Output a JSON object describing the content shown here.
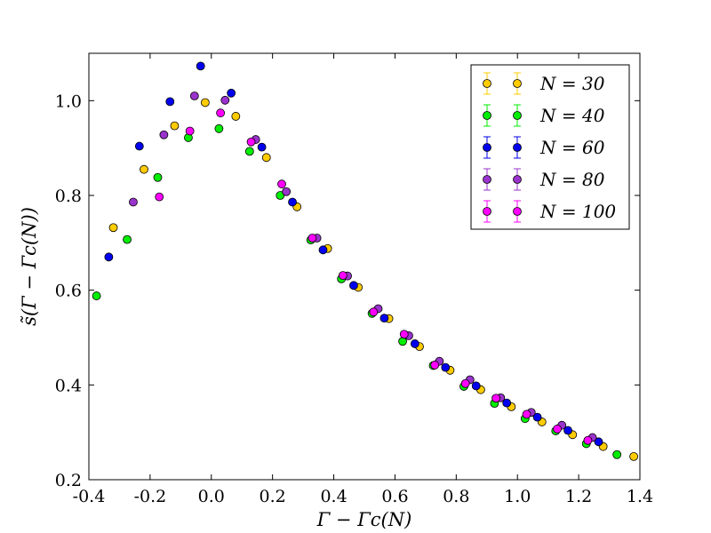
{
  "chart_data": {
    "type": "scatter",
    "title": "",
    "xlabel": "Γ − Γc(N)",
    "ylabel": "s̃(Γ − Γc(N))",
    "xlim": [
      -0.4,
      1.4
    ],
    "ylim": [
      0.2,
      1.1
    ],
    "xticks": [
      "-0.4",
      "-0.2",
      "0.0",
      "0.2",
      "0.4",
      "0.6",
      "0.8",
      "1.0",
      "1.2",
      "1.4"
    ],
    "yticks": [
      "0.2",
      "0.4",
      "0.6",
      "0.8",
      "1.0"
    ],
    "grid": false,
    "legend_position": "top-right",
    "series": [
      {
        "name": "N = 30",
        "color": "#ffcc00",
        "x": [
          -0.32,
          -0.22,
          -0.12,
          -0.02,
          0.08,
          0.18,
          0.28,
          0.38,
          0.48,
          0.58,
          0.68,
          0.78,
          0.88,
          0.98,
          1.08,
          1.18,
          1.28,
          1.38
        ],
        "y": [
          0.732,
          0.855,
          0.947,
          0.996,
          0.967,
          0.88,
          0.776,
          0.688,
          0.606,
          0.54,
          0.481,
          0.431,
          0.39,
          0.354,
          0.322,
          0.295,
          0.27,
          0.249
        ]
      },
      {
        "name": "N = 40",
        "color": "#00ee00",
        "x": [
          -0.375,
          -0.275,
          -0.175,
          -0.075,
          0.025,
          0.125,
          0.225,
          0.325,
          0.425,
          0.525,
          0.625,
          0.725,
          0.825,
          0.925,
          1.025,
          1.125,
          1.225,
          1.325
        ],
        "y": [
          0.588,
          0.707,
          0.838,
          0.922,
          0.941,
          0.893,
          0.8,
          0.706,
          0.624,
          0.551,
          0.492,
          0.441,
          0.397,
          0.361,
          0.329,
          0.303,
          0.276,
          0.253
        ]
      },
      {
        "name": "N = 60",
        "color": "#0000ee",
        "x": [
          -0.335,
          -0.235,
          -0.135,
          -0.035,
          0.065,
          0.165,
          0.265,
          0.365,
          0.465,
          0.565,
          0.665,
          0.765,
          0.865,
          0.965,
          1.065,
          1.165,
          1.265
        ],
        "y": [
          0.67,
          0.904,
          0.998,
          1.073,
          1.016,
          0.902,
          0.786,
          0.685,
          0.61,
          0.541,
          0.487,
          0.437,
          0.398,
          0.362,
          0.332,
          0.304,
          0.28
        ]
      },
      {
        "name": "N = 80",
        "color": "#9933cc",
        "x": [
          -0.255,
          -0.155,
          -0.055,
          0.045,
          0.145,
          0.245,
          0.345,
          0.445,
          0.545,
          0.645,
          0.745,
          0.845,
          0.945,
          1.045,
          1.145,
          1.245
        ],
        "y": [
          0.786,
          0.928,
          1.01,
          1.001,
          0.918,
          0.808,
          0.71,
          0.63,
          0.561,
          0.504,
          0.45,
          0.411,
          0.373,
          0.342,
          0.315,
          0.289
        ]
      },
      {
        "name": "N = 100",
        "color": "#ff00ff",
        "x": [
          -0.17,
          -0.07,
          0.03,
          0.13,
          0.23,
          0.33,
          0.43,
          0.53,
          0.63,
          0.73,
          0.83,
          0.93,
          1.03,
          1.13,
          1.23
        ],
        "y": [
          0.797,
          0.936,
          0.974,
          0.913,
          0.824,
          0.71,
          0.631,
          0.554,
          0.507,
          0.442,
          0.403,
          0.372,
          0.338,
          0.307,
          0.283
        ]
      }
    ]
  }
}
